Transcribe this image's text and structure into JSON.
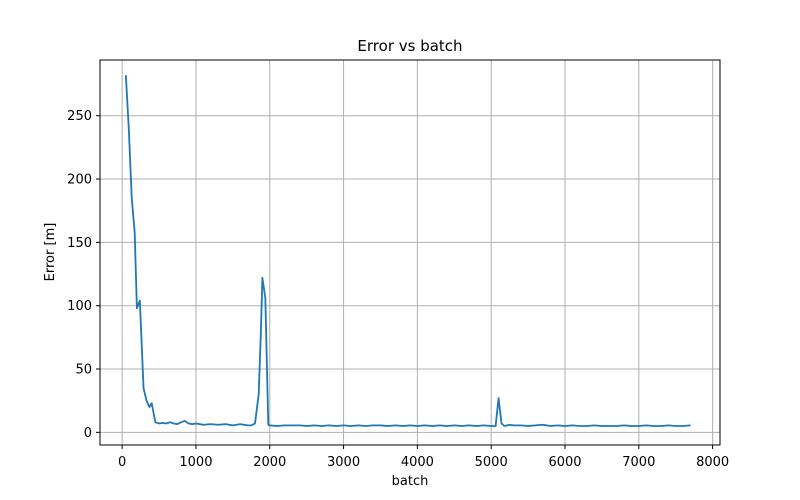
{
  "chart_data": {
    "type": "line",
    "title": "Error vs batch",
    "xlabel": "batch",
    "ylabel": "Error [m]",
    "xlim": [
      -300,
      8100
    ],
    "ylim": [
      -10,
      294
    ],
    "xticks": [
      0,
      1000,
      2000,
      3000,
      4000,
      5000,
      6000,
      7000,
      8000
    ],
    "yticks": [
      0,
      50,
      100,
      150,
      200,
      250
    ],
    "grid": true,
    "legend": "none",
    "series": [
      {
        "color": "#1f77b4",
        "x": [
          50,
          90,
          130,
          170,
          200,
          240,
          290,
          330,
          370,
          400,
          450,
          500,
          550,
          600,
          650,
          700,
          750,
          800,
          850,
          900,
          950,
          1000,
          1100,
          1200,
          1300,
          1400,
          1500,
          1550,
          1600,
          1650,
          1700,
          1750,
          1800,
          1850,
          1880,
          1900,
          1940,
          1980,
          2000,
          2100,
          2200,
          2300,
          2400,
          2500,
          2600,
          2700,
          2800,
          2900,
          3000,
          3100,
          3200,
          3300,
          3400,
          3500,
          3600,
          3700,
          3800,
          3900,
          4000,
          4100,
          4200,
          4300,
          4400,
          4500,
          4600,
          4700,
          4800,
          4900,
          5000,
          5060,
          5100,
          5140,
          5180,
          5250,
          5300,
          5400,
          5500,
          5600,
          5700,
          5800,
          5900,
          6000,
          6100,
          6200,
          6300,
          6400,
          6500,
          6600,
          6700,
          6800,
          6900,
          7000,
          7100,
          7200,
          7300,
          7400,
          7500,
          7600,
          7700
        ],
        "y": [
          282,
          240,
          185,
          158,
          98,
          104,
          35,
          25,
          20,
          23,
          8,
          7,
          7.5,
          7,
          8,
          7,
          6.5,
          8,
          9,
          7,
          6.5,
          7,
          6,
          6.5,
          6,
          6.5,
          5.5,
          6,
          6.5,
          6,
          5.5,
          5.5,
          7,
          30,
          80,
          122,
          106,
          6,
          5.5,
          5,
          5.5,
          5.5,
          5.5,
          5,
          5.5,
          5,
          5.5,
          5,
          5.5,
          5,
          5.5,
          5,
          5.5,
          5.5,
          5,
          5.5,
          5,
          5.5,
          5,
          5.5,
          5,
          5.5,
          5,
          5.5,
          5,
          5.5,
          5,
          5.5,
          5,
          5,
          27,
          7,
          5,
          6,
          5.5,
          5.5,
          5,
          5.5,
          6,
          5,
          5.5,
          5,
          5.5,
          5,
          5,
          5.5,
          5,
          5,
          5,
          5.5,
          5,
          5,
          5.5,
          5,
          5,
          5.5,
          5,
          5,
          5.5
        ]
      }
    ]
  }
}
